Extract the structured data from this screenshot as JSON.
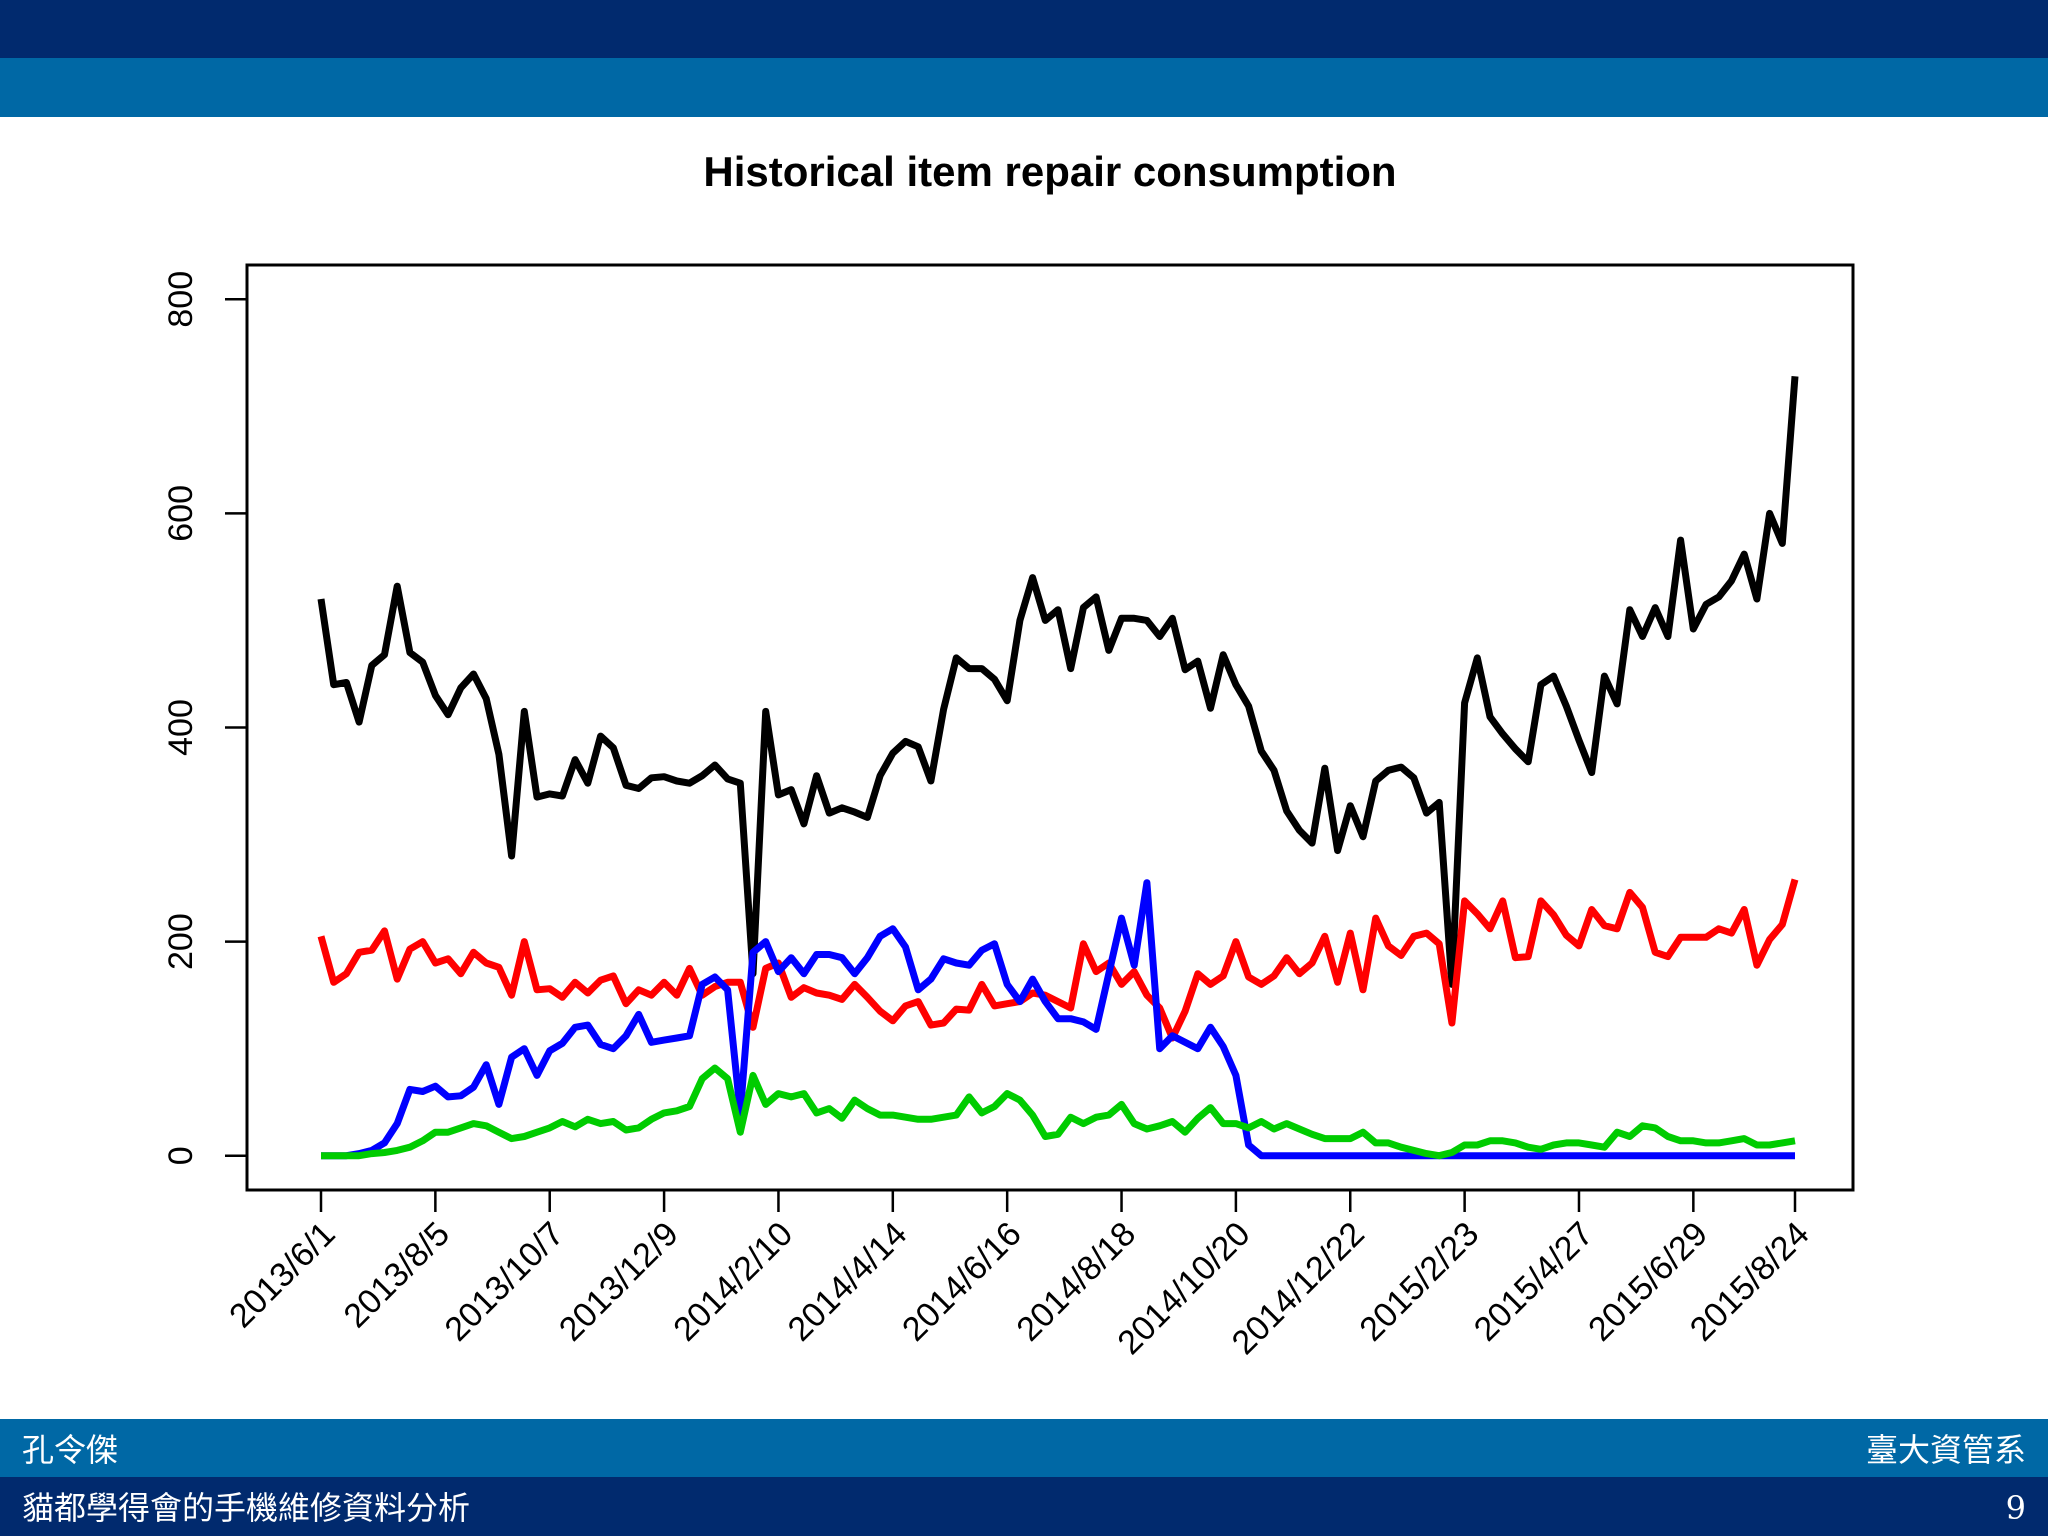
{
  "footer": {
    "author": "孔令傑",
    "department": "臺大資管系",
    "talk_title": "貓都學得會的手機維修資料分析",
    "page_number": "9"
  },
  "chart_data": {
    "type": "line",
    "title": "Historical item repair consumption",
    "xlabel": "",
    "ylabel": "",
    "ylim": [
      -32,
      832
    ],
    "yticks": [
      0,
      200,
      400,
      600,
      800
    ],
    "x_tick_labels": [
      "2013/6/1",
      "2013/8/5",
      "2013/10/7",
      "2013/12/9",
      "2014/2/10",
      "2014/4/14",
      "2014/6/16",
      "2014/8/18",
      "2014/10/20",
      "2014/12/22",
      "2015/2/23",
      "2015/4/27",
      "2015/6/29",
      "2015/8/24"
    ],
    "x_tick_index": [
      0,
      9,
      18,
      27,
      36,
      45,
      54,
      63,
      72,
      81,
      90,
      99,
      108,
      116
    ],
    "grid": false,
    "legend": "none",
    "series": [
      {
        "color": "#000000",
        "values": [
          520,
          440,
          442,
          405,
          458,
          468,
          532,
          470,
          461,
          430,
          412,
          437,
          450,
          427,
          375,
          280,
          415,
          335,
          338,
          336,
          370,
          348,
          392,
          381,
          346,
          343,
          353,
          354,
          350,
          348,
          355,
          365,
          352,
          348,
          170,
          415,
          337,
          342,
          310,
          355,
          320,
          325,
          321,
          316,
          355,
          376,
          387,
          382,
          350,
          417,
          465,
          455,
          455,
          445,
          425,
          500,
          540,
          500,
          510,
          455,
          512,
          522,
          472,
          502,
          502,
          500,
          485,
          502,
          454,
          462,
          418,
          468,
          440,
          420,
          378,
          360,
          322,
          304,
          292,
          362,
          285,
          327,
          298,
          350,
          360,
          363,
          353,
          320,
          330,
          160,
          423,
          465,
          410,
          394,
          380,
          368,
          440,
          448,
          420,
          388,
          358,
          448,
          422,
          510,
          485,
          512,
          485,
          575,
          492,
          515,
          522,
          537,
          562,
          520,
          600,
          572,
          728
        ]
      },
      {
        "color": "#ff0000",
        "values": [
          205,
          162,
          170,
          190,
          192,
          210,
          165,
          193,
          200,
          180,
          184,
          170,
          190,
          180,
          176,
          150,
          200,
          155,
          156,
          148,
          162,
          152,
          164,
          168,
          142,
          155,
          150,
          162,
          150,
          175,
          150,
          158,
          162,
          162,
          120,
          175,
          180,
          148,
          157,
          152,
          150,
          146,
          160,
          148,
          135,
          126,
          140,
          144,
          122,
          124,
          137,
          136,
          160,
          140,
          142,
          144,
          152,
          150,
          144,
          138,
          198,
          172,
          180,
          160,
          172,
          150,
          138,
          110,
          135,
          170,
          160,
          168,
          200,
          167,
          160,
          168,
          185,
          170,
          180,
          205,
          162,
          208,
          155,
          222,
          196,
          187,
          205,
          208,
          198,
          124,
          238,
          226,
          212,
          238,
          185,
          186,
          238,
          225,
          206,
          196,
          230,
          215,
          212,
          246,
          232,
          190,
          186,
          204,
          204,
          204,
          212,
          208,
          230,
          178,
          202,
          216,
          258
        ]
      },
      {
        "color": "#0000ff",
        "values": [
          0,
          0,
          0,
          2,
          5,
          12,
          30,
          62,
          60,
          65,
          55,
          56,
          64,
          85,
          48,
          92,
          100,
          75,
          98,
          105,
          120,
          122,
          104,
          100,
          112,
          132,
          106,
          108,
          110,
          112,
          160,
          167,
          155,
          40,
          190,
          200,
          172,
          185,
          170,
          188,
          188,
          185,
          170,
          185,
          205,
          212,
          195,
          155,
          165,
          184,
          180,
          178,
          192,
          198,
          160,
          144,
          165,
          144,
          128,
          128,
          125,
          118,
          170,
          222,
          178,
          255,
          100,
          112,
          106,
          100,
          120,
          102,
          75,
          10,
          0,
          0,
          0,
          0,
          0,
          0,
          0,
          0,
          0,
          0,
          0,
          0,
          0,
          0,
          0,
          0,
          0,
          0,
          0,
          0,
          0,
          0,
          0,
          0,
          0,
          0,
          0,
          0,
          0,
          0,
          0,
          0,
          0,
          0,
          0,
          0,
          0,
          0,
          0,
          0,
          0,
          0,
          0
        ]
      },
      {
        "color": "#00cc00",
        "values": [
          0,
          0,
          0,
          0,
          2,
          3,
          5,
          8,
          14,
          22,
          22,
          26,
          30,
          28,
          22,
          16,
          18,
          22,
          26,
          32,
          27,
          34,
          30,
          32,
          24,
          26,
          34,
          40,
          42,
          46,
          72,
          82,
          72,
          22,
          75,
          48,
          58,
          55,
          58,
          40,
          44,
          35,
          52,
          44,
          38,
          38,
          36,
          34,
          34,
          36,
          38,
          55,
          40,
          46,
          58,
          52,
          38,
          18,
          20,
          36,
          30,
          36,
          38,
          48,
          30,
          25,
          28,
          32,
          22,
          35,
          45,
          30,
          30,
          26,
          32,
          25,
          30,
          25,
          20,
          16,
          16,
          16,
          22,
          12,
          12,
          8,
          5,
          2,
          0,
          3,
          10,
          10,
          14,
          14,
          12,
          8,
          6,
          10,
          12,
          12,
          10,
          8,
          22,
          18,
          28,
          26,
          18,
          14,
          14,
          12,
          12,
          14,
          16,
          10,
          10,
          12,
          14
        ]
      }
    ]
  }
}
